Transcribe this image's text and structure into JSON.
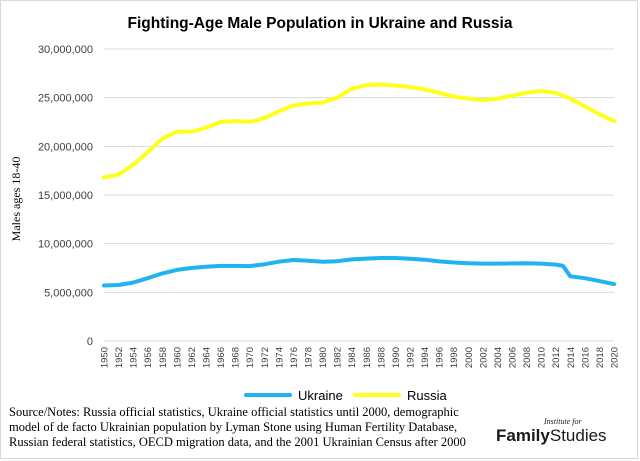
{
  "chart_data": {
    "type": "line",
    "title": "Fighting-Age Male Population in Ukraine and Russia",
    "ylabel": "Males ages 18-40",
    "xlabel": "",
    "ylim": [
      0,
      30000000
    ],
    "yticks": [
      0,
      5000000,
      10000000,
      15000000,
      20000000,
      25000000,
      30000000
    ],
    "ytick_labels": [
      "0",
      "5,000,000",
      "10,000,000",
      "15,000,000",
      "20,000,000",
      "25,000,000",
      "30,000,000"
    ],
    "xlim": [
      1950,
      2020
    ],
    "xtick_labels": [
      "1950",
      "1952",
      "1954",
      "1956",
      "1958",
      "1960",
      "1962",
      "1964",
      "1966",
      "1968",
      "1970",
      "1972",
      "1974",
      "1976",
      "1978",
      "1980",
      "1982",
      "1984",
      "1986",
      "1988",
      "1990",
      "1992",
      "1994",
      "1996",
      "1998",
      "2000",
      "2002",
      "2004",
      "2006",
      "2008",
      "2010",
      "2012",
      "2014",
      "2016",
      "2018",
      "2020"
    ],
    "grid": true,
    "legend_position": "bottom",
    "series": [
      {
        "name": "Ukraine",
        "color": "#1fb3f0",
        "points": [
          [
            1950,
            5700000
          ],
          [
            1952,
            5750000
          ],
          [
            1954,
            6000000
          ],
          [
            1956,
            6450000
          ],
          [
            1958,
            6950000
          ],
          [
            1960,
            7300000
          ],
          [
            1962,
            7500000
          ],
          [
            1964,
            7620000
          ],
          [
            1966,
            7720000
          ],
          [
            1968,
            7720000
          ],
          [
            1970,
            7700000
          ],
          [
            1972,
            7880000
          ],
          [
            1974,
            8150000
          ],
          [
            1976,
            8320000
          ],
          [
            1978,
            8250000
          ],
          [
            1980,
            8150000
          ],
          [
            1982,
            8200000
          ],
          [
            1984,
            8380000
          ],
          [
            1986,
            8470000
          ],
          [
            1988,
            8530000
          ],
          [
            1990,
            8530000
          ],
          [
            1992,
            8450000
          ],
          [
            1994,
            8350000
          ],
          [
            1996,
            8180000
          ],
          [
            1998,
            8070000
          ],
          [
            2000,
            7980000
          ],
          [
            2002,
            7950000
          ],
          [
            2004,
            7950000
          ],
          [
            2006,
            7970000
          ],
          [
            2008,
            7980000
          ],
          [
            2010,
            7950000
          ],
          [
            2012,
            7850000
          ],
          [
            2013,
            7720000
          ],
          [
            2014,
            6650000
          ],
          [
            2016,
            6450000
          ],
          [
            2018,
            6150000
          ],
          [
            2020,
            5850000
          ]
        ]
      },
      {
        "name": "Russia",
        "color": "#ffff1e",
        "points": [
          [
            1950,
            16800000
          ],
          [
            1952,
            17100000
          ],
          [
            1954,
            18100000
          ],
          [
            1956,
            19400000
          ],
          [
            1958,
            20800000
          ],
          [
            1960,
            21500000
          ],
          [
            1962,
            21500000
          ],
          [
            1964,
            21900000
          ],
          [
            1966,
            22500000
          ],
          [
            1968,
            22600000
          ],
          [
            1970,
            22500000
          ],
          [
            1972,
            22900000
          ],
          [
            1974,
            23600000
          ],
          [
            1976,
            24200000
          ],
          [
            1978,
            24400000
          ],
          [
            1980,
            24500000
          ],
          [
            1982,
            25000000
          ],
          [
            1984,
            25900000
          ],
          [
            1986,
            26300000
          ],
          [
            1988,
            26350000
          ],
          [
            1990,
            26250000
          ],
          [
            1992,
            26100000
          ],
          [
            1994,
            25850000
          ],
          [
            1996,
            25500000
          ],
          [
            1998,
            25100000
          ],
          [
            2000,
            24900000
          ],
          [
            2002,
            24750000
          ],
          [
            2004,
            24900000
          ],
          [
            2006,
            25200000
          ],
          [
            2008,
            25500000
          ],
          [
            2010,
            25700000
          ],
          [
            2012,
            25500000
          ],
          [
            2014,
            24900000
          ],
          [
            2016,
            24100000
          ],
          [
            2018,
            23300000
          ],
          [
            2020,
            22600000
          ]
        ]
      }
    ]
  },
  "source_note": "Source/Notes: Russia official statistics, Ukraine official statistics until 2000, demographic model of de facto Ukrainian population by Lyman Stone using Human Fertility Database, Russian federal statistics, OECD migration data, and the 2001 Ukrainian Census after 2000",
  "brand": {
    "prefix": "Institute for",
    "name_bold": "Family",
    "name_light": "Studies"
  }
}
